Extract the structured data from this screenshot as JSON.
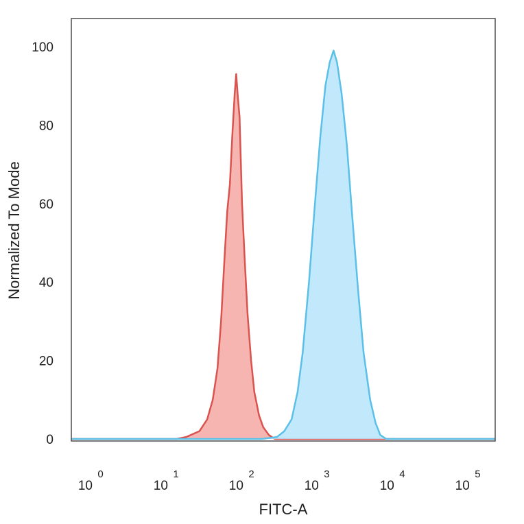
{
  "chart_data": {
    "type": "area",
    "title": "",
    "xlabel": "FITC-A",
    "ylabel": "Normalized To Mode",
    "x_scale": "log",
    "xlim": [
      0.6,
      250000
    ],
    "ylim": [
      0,
      100
    ],
    "x_ticks": [
      {
        "base": "10",
        "exp": "0",
        "value": 1
      },
      {
        "base": "10",
        "exp": "1",
        "value": 10
      },
      {
        "base": "10",
        "exp": "2",
        "value": 100
      },
      {
        "base": "10",
        "exp": "3",
        "value": 1000
      },
      {
        "base": "10",
        "exp": "4",
        "value": 10000
      },
      {
        "base": "10",
        "exp": "5",
        "value": 100000
      }
    ],
    "y_ticks": [
      "0",
      "20",
      "40",
      "60",
      "80",
      "100"
    ],
    "grid": false,
    "legend": "none",
    "series": [
      {
        "color": "#d9534f",
        "fill": "#f4a8a3",
        "points": [
          [
            0.6,
            0
          ],
          [
            15,
            0
          ],
          [
            20,
            0.5
          ],
          [
            30,
            2
          ],
          [
            38,
            5
          ],
          [
            45,
            10
          ],
          [
            52,
            18
          ],
          [
            58,
            30
          ],
          [
            64,
            45
          ],
          [
            70,
            58
          ],
          [
            76,
            65
          ],
          [
            82,
            78
          ],
          [
            88,
            88
          ],
          [
            92,
            93
          ],
          [
            96,
            88
          ],
          [
            102,
            82
          ],
          [
            110,
            60
          ],
          [
            120,
            45
          ],
          [
            130,
            32
          ],
          [
            145,
            20
          ],
          [
            160,
            12
          ],
          [
            185,
            6
          ],
          [
            210,
            3
          ],
          [
            250,
            1
          ],
          [
            300,
            0
          ],
          [
            250000,
            0
          ]
        ]
      },
      {
        "color": "#5bc0e8",
        "fill": "#b7e4fb",
        "points": [
          [
            0.6,
            0
          ],
          [
            200,
            0
          ],
          [
            320,
            0.5
          ],
          [
            400,
            2
          ],
          [
            500,
            5
          ],
          [
            600,
            12
          ],
          [
            700,
            22
          ],
          [
            850,
            40
          ],
          [
            1000,
            58
          ],
          [
            1200,
            77
          ],
          [
            1400,
            90
          ],
          [
            1600,
            96
          ],
          [
            1800,
            99
          ],
          [
            2000,
            96
          ],
          [
            2300,
            88
          ],
          [
            2700,
            75
          ],
          [
            3200,
            56
          ],
          [
            3800,
            38
          ],
          [
            4500,
            22
          ],
          [
            5500,
            10
          ],
          [
            6500,
            4
          ],
          [
            7500,
            1
          ],
          [
            9000,
            0
          ],
          [
            250000,
            0
          ]
        ]
      }
    ]
  }
}
